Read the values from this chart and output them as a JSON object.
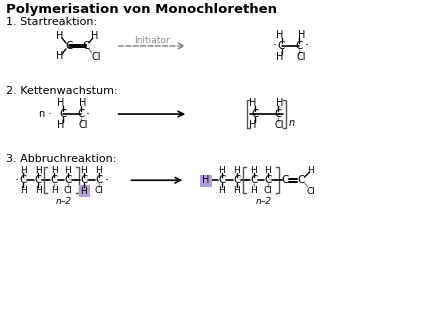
{
  "title": "Polymerisation von Monochlorethen",
  "bg_color": "#ffffff",
  "text_color": "#000000",
  "section1_label": "1. Startreaktion:",
  "section2_label": "2. Kettenwachstum:",
  "section3_label": "3. Abbruchreaktion:",
  "arrow_label": "Initiator",
  "highlight_color": "#b39ddb",
  "bracket_color": "#555555",
  "bond_gray": "#888888"
}
